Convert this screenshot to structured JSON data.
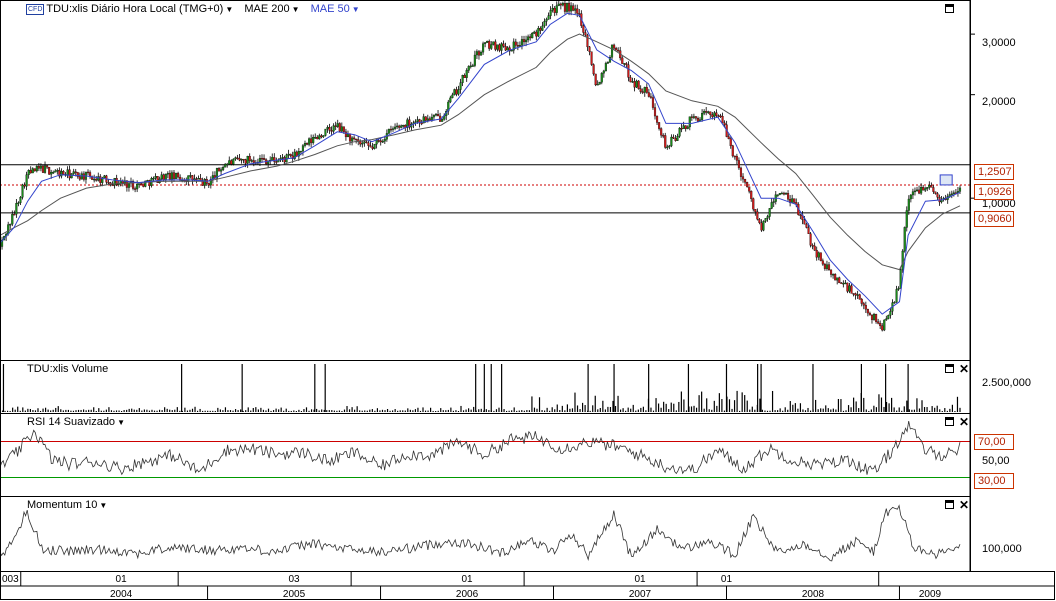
{
  "header": {
    "instrument": "TDU:xlis Diário Hora Local (TMG+0)",
    "cfd_badge": "CFD",
    "indicator1": "MAE 200",
    "indicator2": "MAE 50"
  },
  "panels": {
    "volume": {
      "title": "TDU:xlis Volume",
      "axis_label": "2.500,000"
    },
    "rsi": {
      "title": "RSI 14 Suavizado",
      "upper_level": "70,00",
      "mid_label": "50,00",
      "lower_level": "30,00"
    },
    "momentum": {
      "title": "Momentum 10",
      "axis_label": "100,000"
    }
  },
  "price_axis": {
    "labels": [
      "3,0000",
      "2,0000",
      "1,0000"
    ],
    "tags": [
      "1,2507",
      "1,0926",
      "0,9060"
    ]
  },
  "time_axis": {
    "months": [
      "003",
      "01",
      "03",
      "01",
      "01",
      "01"
    ],
    "years": [
      "2004",
      "2005",
      "2006",
      "2007",
      "2008",
      "2009"
    ]
  },
  "colors": {
    "up_candle": "#1a8a1a",
    "down_candle": "#cc1a1a",
    "mae50": "#3344cc",
    "mae200": "#555555",
    "rsi_upper": "#cc0000",
    "rsi_lower": "#009900",
    "tag_border": "#cc3300"
  },
  "chart_data": {
    "type": "line",
    "scale": "log",
    "x_unit": "year",
    "price": {
      "x": [
        2003.8,
        2003.88,
        2003.96,
        2004.04,
        2004.15,
        2004.3,
        2004.45,
        2004.6,
        2004.75,
        2004.9,
        2005.0,
        2005.1,
        2005.25,
        2005.4,
        2005.5,
        2005.62,
        2005.75,
        2005.85,
        2005.95,
        2006.08,
        2006.2,
        2006.35,
        2006.45,
        2006.6,
        2006.75,
        2006.9,
        2006.98,
        2007.08,
        2007.15,
        2007.25,
        2007.35,
        2007.45,
        2007.55,
        2007.65,
        2007.8,
        2007.95,
        2008.05,
        2008.2,
        2008.3,
        2008.4,
        2008.5,
        2008.6,
        2008.7,
        2008.8,
        2008.9,
        2009.0,
        2009.05,
        2009.15,
        2009.25,
        2009.35
      ],
      "y": [
        0.72,
        0.9,
        1.18,
        1.22,
        1.18,
        1.16,
        1.12,
        1.09,
        1.16,
        1.14,
        1.1,
        1.26,
        1.3,
        1.29,
        1.32,
        1.5,
        1.62,
        1.45,
        1.4,
        1.6,
        1.68,
        1.72,
        2.1,
        2.8,
        2.75,
        3.0,
        3.55,
        3.6,
        3.4,
        2.1,
        2.8,
        2.2,
        2.0,
        1.4,
        1.7,
        1.78,
        1.3,
        0.8,
        1.05,
        0.95,
        0.72,
        0.6,
        0.55,
        0.48,
        0.42,
        0.55,
        1.0,
        1.1,
        0.98,
        1.09
      ],
      "mae50": [
        0.74,
        0.82,
        0.98,
        1.12,
        1.17,
        1.16,
        1.13,
        1.11,
        1.13,
        1.13,
        1.12,
        1.18,
        1.26,
        1.29,
        1.31,
        1.42,
        1.56,
        1.53,
        1.46,
        1.55,
        1.65,
        1.7,
        1.95,
        2.45,
        2.7,
        2.85,
        3.2,
        3.45,
        3.4,
        2.7,
        2.5,
        2.35,
        2.15,
        1.65,
        1.65,
        1.72,
        1.45,
        1.0,
        1.0,
        0.96,
        0.8,
        0.66,
        0.58,
        0.52,
        0.46,
        0.5,
        0.78,
        0.98,
        0.99,
        1.04
      ],
      "mae200": [
        0.78,
        0.82,
        0.86,
        0.92,
        1.0,
        1.07,
        1.1,
        1.11,
        1.12,
        1.12,
        1.12,
        1.15,
        1.2,
        1.24,
        1.28,
        1.34,
        1.42,
        1.46,
        1.48,
        1.53,
        1.58,
        1.63,
        1.75,
        2.0,
        2.2,
        2.4,
        2.65,
        2.9,
        3.0,
        2.85,
        2.7,
        2.5,
        2.3,
        2.05,
        1.92,
        1.85,
        1.72,
        1.45,
        1.3,
        1.18,
        1.02,
        0.88,
        0.78,
        0.7,
        0.64,
        0.62,
        0.7,
        0.82,
        0.9,
        0.95
      ]
    },
    "horizontal_levels": [
      1.2507,
      1.0926,
      0.906
    ],
    "volume": {
      "axis_label": "2.500,000",
      "spikes_x": [
        2003.82,
        2004.85,
        2005.2,
        2005.62,
        2005.68,
        2006.55,
        2006.6,
        2006.64,
        2006.7,
        2007.2,
        2007.35,
        2007.55,
        2007.78,
        2008.0,
        2008.18,
        2008.2,
        2008.5,
        2008.78,
        2008.92,
        2009.05
      ],
      "baseline_level": "low"
    },
    "rsi": {
      "levels": [
        70,
        30
      ],
      "x": [
        2003.8,
        2003.9,
        2004.0,
        2004.1,
        2004.2,
        2004.35,
        2004.5,
        2004.65,
        2004.8,
        2004.95,
        2005.1,
        2005.25,
        2005.4,
        2005.55,
        2005.7,
        2005.85,
        2006.0,
        2006.15,
        2006.3,
        2006.45,
        2006.6,
        2006.75,
        2006.9,
        2007.05,
        2007.2,
        2007.35,
        2007.5,
        2007.65,
        2007.8,
        2007.95,
        2008.1,
        2008.25,
        2008.4,
        2008.55,
        2008.7,
        2008.85,
        2008.95,
        2009.05,
        2009.15,
        2009.25,
        2009.35
      ],
      "y": [
        42,
        58,
        82,
        50,
        45,
        48,
        40,
        48,
        55,
        36,
        60,
        62,
        56,
        58,
        48,
        58,
        42,
        56,
        55,
        70,
        55,
        72,
        75,
        62,
        70,
        65,
        55,
        42,
        38,
        60,
        40,
        62,
        48,
        44,
        50,
        35,
        58,
        88,
        60,
        55,
        63
      ]
    },
    "momentum": {
      "axis_label": "100,000",
      "x": [
        2003.8,
        2003.88,
        2003.95,
        2004.05,
        2004.2,
        2004.4,
        2004.6,
        2004.8,
        2005.0,
        2005.2,
        2005.4,
        2005.6,
        2005.8,
        2006.0,
        2006.2,
        2006.4,
        2006.55,
        2006.7,
        2006.85,
        2007.0,
        2007.1,
        2007.2,
        2007.35,
        2007.45,
        2007.6,
        2007.75,
        2007.9,
        2008.05,
        2008.15,
        2008.3,
        2008.45,
        2008.6,
        2008.75,
        2008.85,
        2008.92,
        2009.0,
        2009.08,
        2009.2,
        2009.35
      ],
      "y": [
        95,
        112,
        140,
        102,
        100,
        102,
        98,
        104,
        101,
        103,
        100,
        108,
        102,
        99,
        104,
        110,
        106,
        98,
        112,
        100,
        118,
        96,
        138,
        94,
        122,
        102,
        110,
        96,
        134,
        98,
        108,
        94,
        110,
        100,
        138,
        145,
        104,
        96,
        104
      ]
    }
  }
}
